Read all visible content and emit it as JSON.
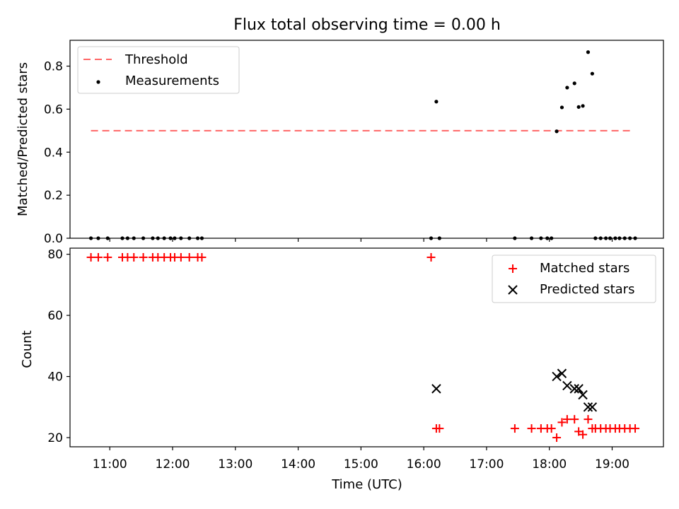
{
  "chart_data": [
    {
      "type": "scatter",
      "title": "Flux total observing time = 0.00 h",
      "xlabel": "",
      "ylabel": "Matched/Predicted stars",
      "xlim": [
        "10:22",
        "19:49"
      ],
      "ylim": [
        0,
        0.92
      ],
      "yticks": [
        "0.0",
        "0.2",
        "0.4",
        "0.6",
        "0.8"
      ],
      "legend_position": "top-left",
      "threshold": {
        "name": "Threshold",
        "value": 0.5,
        "x_range": [
          "10:42",
          "19:21"
        ],
        "color": "#ff6666",
        "style": "dashed"
      },
      "series": [
        {
          "name": "Measurements",
          "color": "#000000",
          "marker": "dot",
          "points": [
            [
              "10:42",
              0
            ],
            [
              "10:49",
              0
            ],
            [
              "10:58",
              0
            ],
            [
              "11:12",
              0
            ],
            [
              "11:17",
              0
            ],
            [
              "11:23",
              0
            ],
            [
              "11:32",
              0
            ],
            [
              "11:41",
              0
            ],
            [
              "11:46",
              0
            ],
            [
              "11:52",
              0
            ],
            [
              "11:58",
              0
            ],
            [
              "12:02",
              0
            ],
            [
              "12:08",
              0
            ],
            [
              "12:16",
              0
            ],
            [
              "12:24",
              0
            ],
            [
              "12:28",
              0
            ],
            [
              "16:07",
              0
            ],
            [
              "16:12",
              0.635
            ],
            [
              "16:15",
              0
            ],
            [
              "17:27",
              0
            ],
            [
              "17:43",
              0
            ],
            [
              "17:52",
              0
            ],
            [
              "17:58",
              0
            ],
            [
              "18:02",
              0
            ],
            [
              "18:07",
              0.497
            ],
            [
              "18:12",
              0.608
            ],
            [
              "18:17",
              0.7
            ],
            [
              "18:24",
              0.72
            ],
            [
              "18:28",
              0.61
            ],
            [
              "18:32",
              0.615
            ],
            [
              "18:37",
              0.865
            ],
            [
              "18:41",
              0.765
            ],
            [
              "18:44",
              0
            ],
            [
              "18:49",
              0
            ],
            [
              "18:54",
              0
            ],
            [
              "18:58",
              0
            ],
            [
              "19:03",
              0
            ],
            [
              "19:07",
              0
            ],
            [
              "19:12",
              0
            ],
            [
              "19:17",
              0
            ],
            [
              "19:22",
              0
            ]
          ]
        }
      ]
    },
    {
      "type": "scatter",
      "title": "",
      "xlabel": "Time (UTC)",
      "ylabel": "Count",
      "xlim": [
        "10:22",
        "19:49"
      ],
      "ylim": [
        17,
        82
      ],
      "xticks": [
        "11:00",
        "12:00",
        "13:00",
        "14:00",
        "15:00",
        "16:00",
        "17:00",
        "18:00",
        "19:00"
      ],
      "yticks": [
        "20",
        "40",
        "60",
        "80"
      ],
      "legend_position": "top-right",
      "series": [
        {
          "name": "Matched stars",
          "color": "#ff0000",
          "marker": "plus",
          "points": [
            [
              "10:42",
              79
            ],
            [
              "10:49",
              79
            ],
            [
              "10:58",
              79
            ],
            [
              "11:12",
              79
            ],
            [
              "11:17",
              79
            ],
            [
              "11:23",
              79
            ],
            [
              "11:32",
              79
            ],
            [
              "11:41",
              79
            ],
            [
              "11:46",
              79
            ],
            [
              "11:52",
              79
            ],
            [
              "11:58",
              79
            ],
            [
              "12:02",
              79
            ],
            [
              "12:08",
              79
            ],
            [
              "12:16",
              79
            ],
            [
              "12:24",
              79
            ],
            [
              "12:28",
              79
            ],
            [
              "16:07",
              79
            ],
            [
              "16:12",
              23
            ],
            [
              "16:15",
              23
            ],
            [
              "17:27",
              23
            ],
            [
              "17:43",
              23
            ],
            [
              "17:52",
              23
            ],
            [
              "17:58",
              23
            ],
            [
              "18:02",
              23
            ],
            [
              "18:07",
              20
            ],
            [
              "18:12",
              25
            ],
            [
              "18:17",
              26
            ],
            [
              "18:24",
              26
            ],
            [
              "18:28",
              22
            ],
            [
              "18:32",
              21
            ],
            [
              "18:37",
              26
            ],
            [
              "18:41",
              23
            ],
            [
              "18:44",
              23
            ],
            [
              "18:49",
              23
            ],
            [
              "18:54",
              23
            ],
            [
              "18:58",
              23
            ],
            [
              "19:03",
              23
            ],
            [
              "19:07",
              23
            ],
            [
              "19:12",
              23
            ],
            [
              "19:17",
              23
            ],
            [
              "19:22",
              23
            ]
          ]
        },
        {
          "name": "Predicted stars",
          "color": "#000000",
          "marker": "x",
          "points": [
            [
              "16:12",
              36
            ],
            [
              "18:07",
              40
            ],
            [
              "18:12",
              41
            ],
            [
              "18:17",
              37
            ],
            [
              "18:24",
              36
            ],
            [
              "18:28",
              36
            ],
            [
              "18:32",
              34
            ],
            [
              "18:37",
              30
            ],
            [
              "18:41",
              30
            ]
          ]
        }
      ]
    }
  ]
}
